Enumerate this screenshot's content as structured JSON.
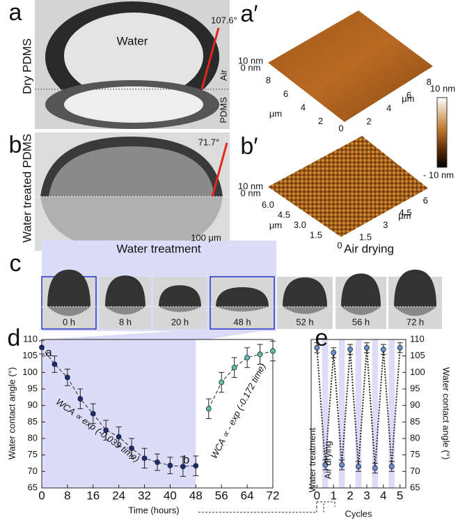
{
  "panels": {
    "a": {
      "label": "a",
      "water": "Water",
      "sample": "Dry PDMS",
      "angle": "107.6°",
      "air": "Air",
      "substrate": "PDMS"
    },
    "a_prime": {
      "label": "a′",
      "z_max": "10 nm",
      "z_zero": "0 nm",
      "left_ticks": [
        "8",
        "6",
        "4",
        "2"
      ],
      "corner": "0",
      "left_unit": "μm",
      "right_ticks": [
        "2",
        "4",
        "6",
        "8"
      ],
      "right_unit": "μm"
    },
    "colorbar": {
      "max": "10 nm",
      "min": "- 10 nm"
    },
    "b": {
      "label": "b",
      "sample": "Water treated PDMS",
      "angle": "71.7°",
      "scale_bar": "100 μm"
    },
    "b_prime": {
      "label": "b′",
      "z_max": "10 nm",
      "z_zero": "0 nm",
      "left_ticks": [
        "6.0",
        "4.5",
        "3.0",
        "1.5"
      ],
      "corner": "0",
      "left_unit": "μm",
      "right_ticks": [
        "1.5",
        "3",
        "4.5",
        "6"
      ],
      "right_unit": "μm"
    },
    "c": {
      "label": "c",
      "treatment": "Water treatment",
      "drying": "Air drying",
      "times": [
        "0 h",
        "8 h",
        "20 h",
        "48 h",
        "52 h",
        "56 h",
        "72 h"
      ]
    }
  },
  "chart_data": [
    {
      "type": "errorbar",
      "label": "d",
      "x_label": "Time (hours)",
      "y_label": "Water contact angle (°)",
      "xlim": [
        0,
        72
      ],
      "xticks": [
        0,
        8,
        16,
        24,
        32,
        40,
        48,
        56,
        64,
        72
      ],
      "ylim": [
        65,
        110
      ],
      "yticks": [
        65,
        70,
        75,
        80,
        85,
        90,
        95,
        100,
        105,
        110
      ],
      "annotations": [
        "a",
        "b",
        "WCA ∝ exp (-0.039 time)",
        "WCA ∝ - exp (-0.172 time)"
      ],
      "series": [
        {
          "color": "#1c2a7a",
          "x": [
            0,
            4,
            8,
            12,
            16,
            20,
            24,
            28,
            32,
            36,
            40,
            44,
            48
          ],
          "values": [
            107.6,
            102.5,
            98.5,
            92,
            87.5,
            82.5,
            80.5,
            77,
            74,
            72.8,
            71.8,
            71.5,
            71.7
          ],
          "errors": [
            2,
            2.5,
            2.5,
            3,
            3,
            3,
            3,
            3,
            3,
            2.5,
            2.5,
            3,
            3
          ]
        },
        {
          "color": "#5bc0b0",
          "x": [
            52,
            56,
            60,
            64,
            68,
            72
          ],
          "values": [
            89,
            97,
            101.5,
            104.5,
            105.5,
            106.5
          ],
          "errors": [
            3,
            3,
            3,
            3,
            3,
            3
          ]
        }
      ]
    },
    {
      "type": "errorbar",
      "label": "e",
      "x_label": "Cycles",
      "y_label": "Water contact angle (°)",
      "xlim": [
        -0.35,
        5.35
      ],
      "xticks": [
        0,
        1,
        2,
        3,
        4,
        5
      ],
      "ylim": [
        65,
        110
      ],
      "yticks": [
        65,
        70,
        75,
        80,
        85,
        90,
        95,
        100,
        105,
        110
      ],
      "annotations": [
        "Water treatment",
        "Air drying"
      ],
      "series": [
        {
          "color": "#6a8fd0",
          "x": [
            0,
            0.5,
            1,
            1.5,
            2,
            2.5,
            3,
            3.5,
            4,
            4.5,
            5
          ],
          "values": [
            107.5,
            72,
            106,
            72,
            107,
            71.5,
            107.5,
            71,
            107,
            71.5,
            107.5
          ],
          "errors": [
            1.5,
            1.5,
            1.5,
            1.5,
            1.5,
            1.5,
            1.5,
            1.5,
            1.5,
            1.5,
            1.5
          ]
        }
      ]
    }
  ]
}
